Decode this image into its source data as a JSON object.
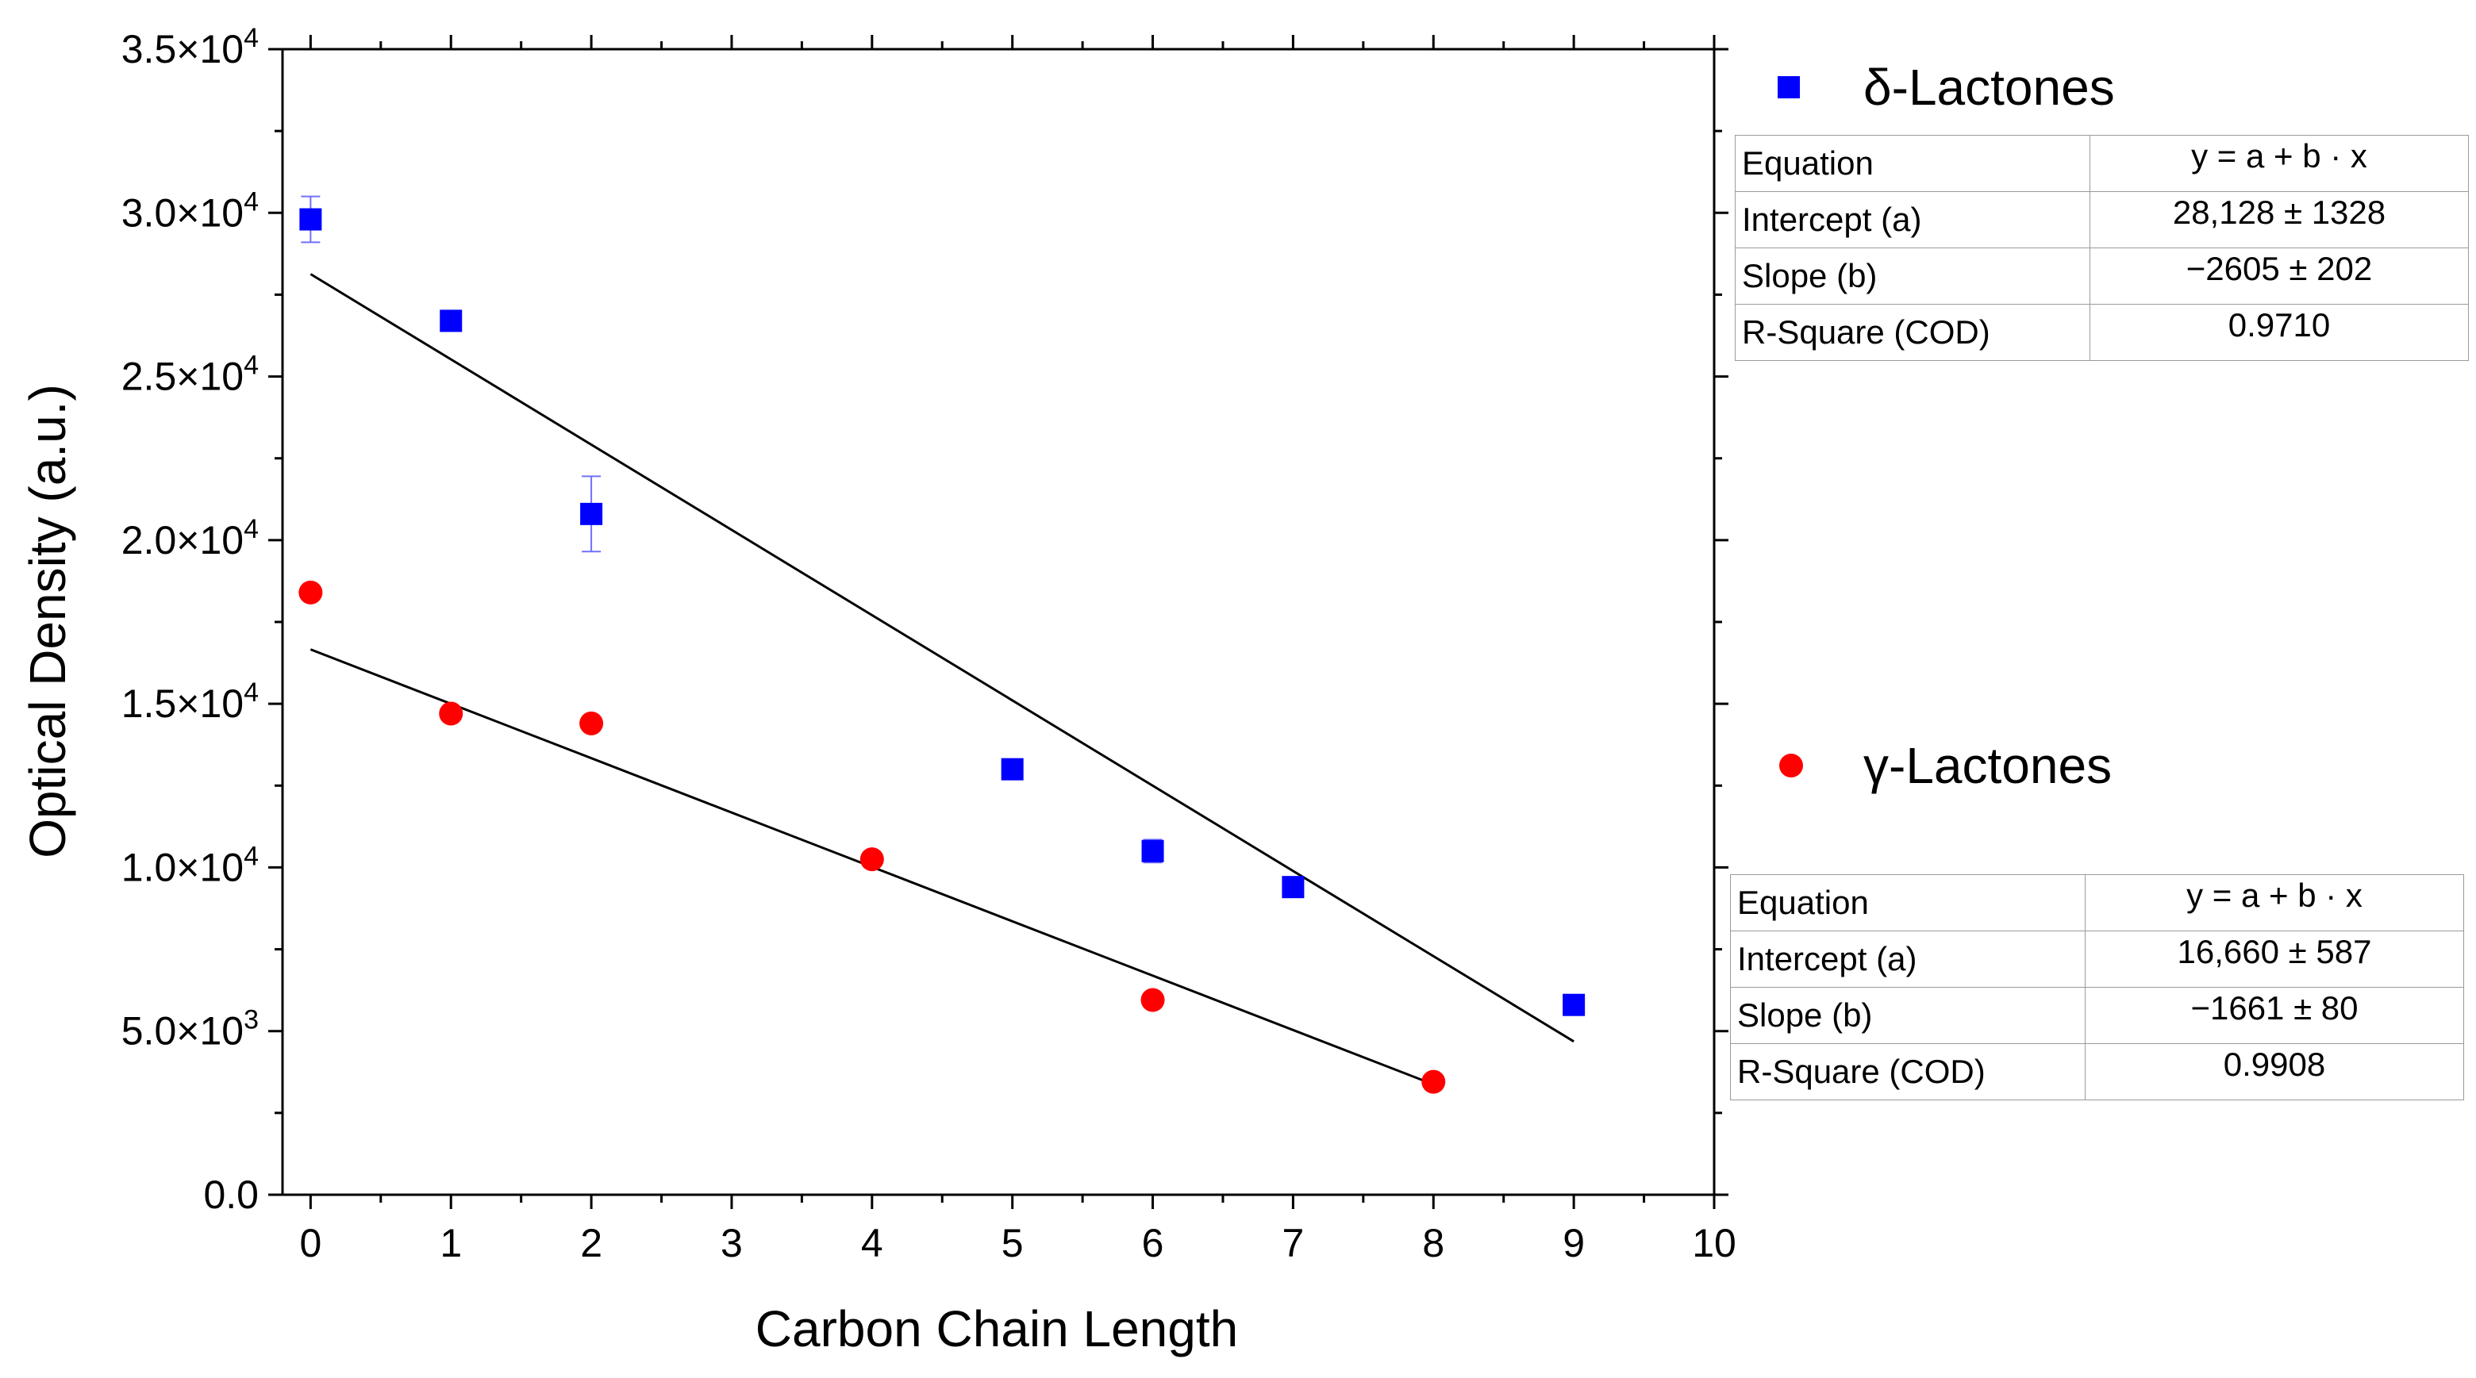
{
  "chart_data": {
    "type": "scatter",
    "title": "",
    "xlabel": "Carbon Chain Length",
    "ylabel": "Optical Density (a.u.)",
    "xlim": [
      -0.2,
      10
    ],
    "ylim": [
      0,
      35000
    ],
    "x_ticks": [
      0,
      1,
      2,
      3,
      4,
      5,
      6,
      7,
      8,
      9,
      10
    ],
    "y_ticks": [
      {
        "value": 0,
        "mantissa": "0.0",
        "exp": ""
      },
      {
        "value": 5000,
        "mantissa": "5.0×10",
        "exp": "3"
      },
      {
        "value": 10000,
        "mantissa": "1.0×10",
        "exp": "4"
      },
      {
        "value": 15000,
        "mantissa": "1.5×10",
        "exp": "4"
      },
      {
        "value": 20000,
        "mantissa": "2.0×10",
        "exp": "4"
      },
      {
        "value": 25000,
        "mantissa": "2.5×10",
        "exp": "4"
      },
      {
        "value": 30000,
        "mantissa": "3.0×10",
        "exp": "4"
      },
      {
        "value": 35000,
        "mantissa": "3.5×10",
        "exp": "4"
      }
    ],
    "series": [
      {
        "name": "δ-Lactones",
        "marker": "square",
        "color": "#0000ff",
        "errorbar_color": "#7070ff",
        "x": [
          0,
          1,
          2,
          5,
          6,
          7,
          9
        ],
        "y": [
          29800,
          26700,
          20800,
          13000,
          10500,
          9400,
          5800
        ],
        "error": [
          700,
          0,
          1150,
          0,
          350,
          0,
          0
        ],
        "fit": {
          "intercept": 28128,
          "slope": -2605,
          "x_range": [
            0,
            9
          ],
          "color": "#000000"
        }
      },
      {
        "name": "γ-Lactones",
        "marker": "circle",
        "color": "#ff0000",
        "x": [
          0,
          1,
          2,
          4,
          6,
          8
        ],
        "y": [
          18400,
          14700,
          14400,
          10250,
          5950,
          3450
        ],
        "error": [
          0,
          0,
          0,
          0,
          0,
          0
        ],
        "fit": {
          "intercept": 16660,
          "slope": -1661,
          "x_range": [
            0,
            8
          ],
          "color": "#000000"
        }
      }
    ],
    "legend": [
      {
        "label": "δ-Lactones",
        "marker": "square",
        "color": "#0000ff"
      },
      {
        "label": "γ-Lactones",
        "marker": "circle",
        "color": "#ff0000"
      }
    ],
    "fit_tables": [
      {
        "series": "δ-Lactones",
        "rows": [
          {
            "key": "Equation",
            "value": "y = a + b · x"
          },
          {
            "key": "Intercept (a)",
            "value": "28,128 ± 1328"
          },
          {
            "key": "Slope (b)",
            "value": "−2605 ± 202"
          },
          {
            "key": "R-Square (COD)",
            "value": "0.9710"
          }
        ]
      },
      {
        "series": "γ-Lactones",
        "rows": [
          {
            "key": "Equation",
            "value": "y = a + b · x"
          },
          {
            "key": "Intercept (a)",
            "value": "16,660 ± 587"
          },
          {
            "key": "Slope (b)",
            "value": "−1661 ± 80"
          },
          {
            "key": "R-Square (COD)",
            "value": "0.9908"
          }
        ]
      }
    ]
  }
}
